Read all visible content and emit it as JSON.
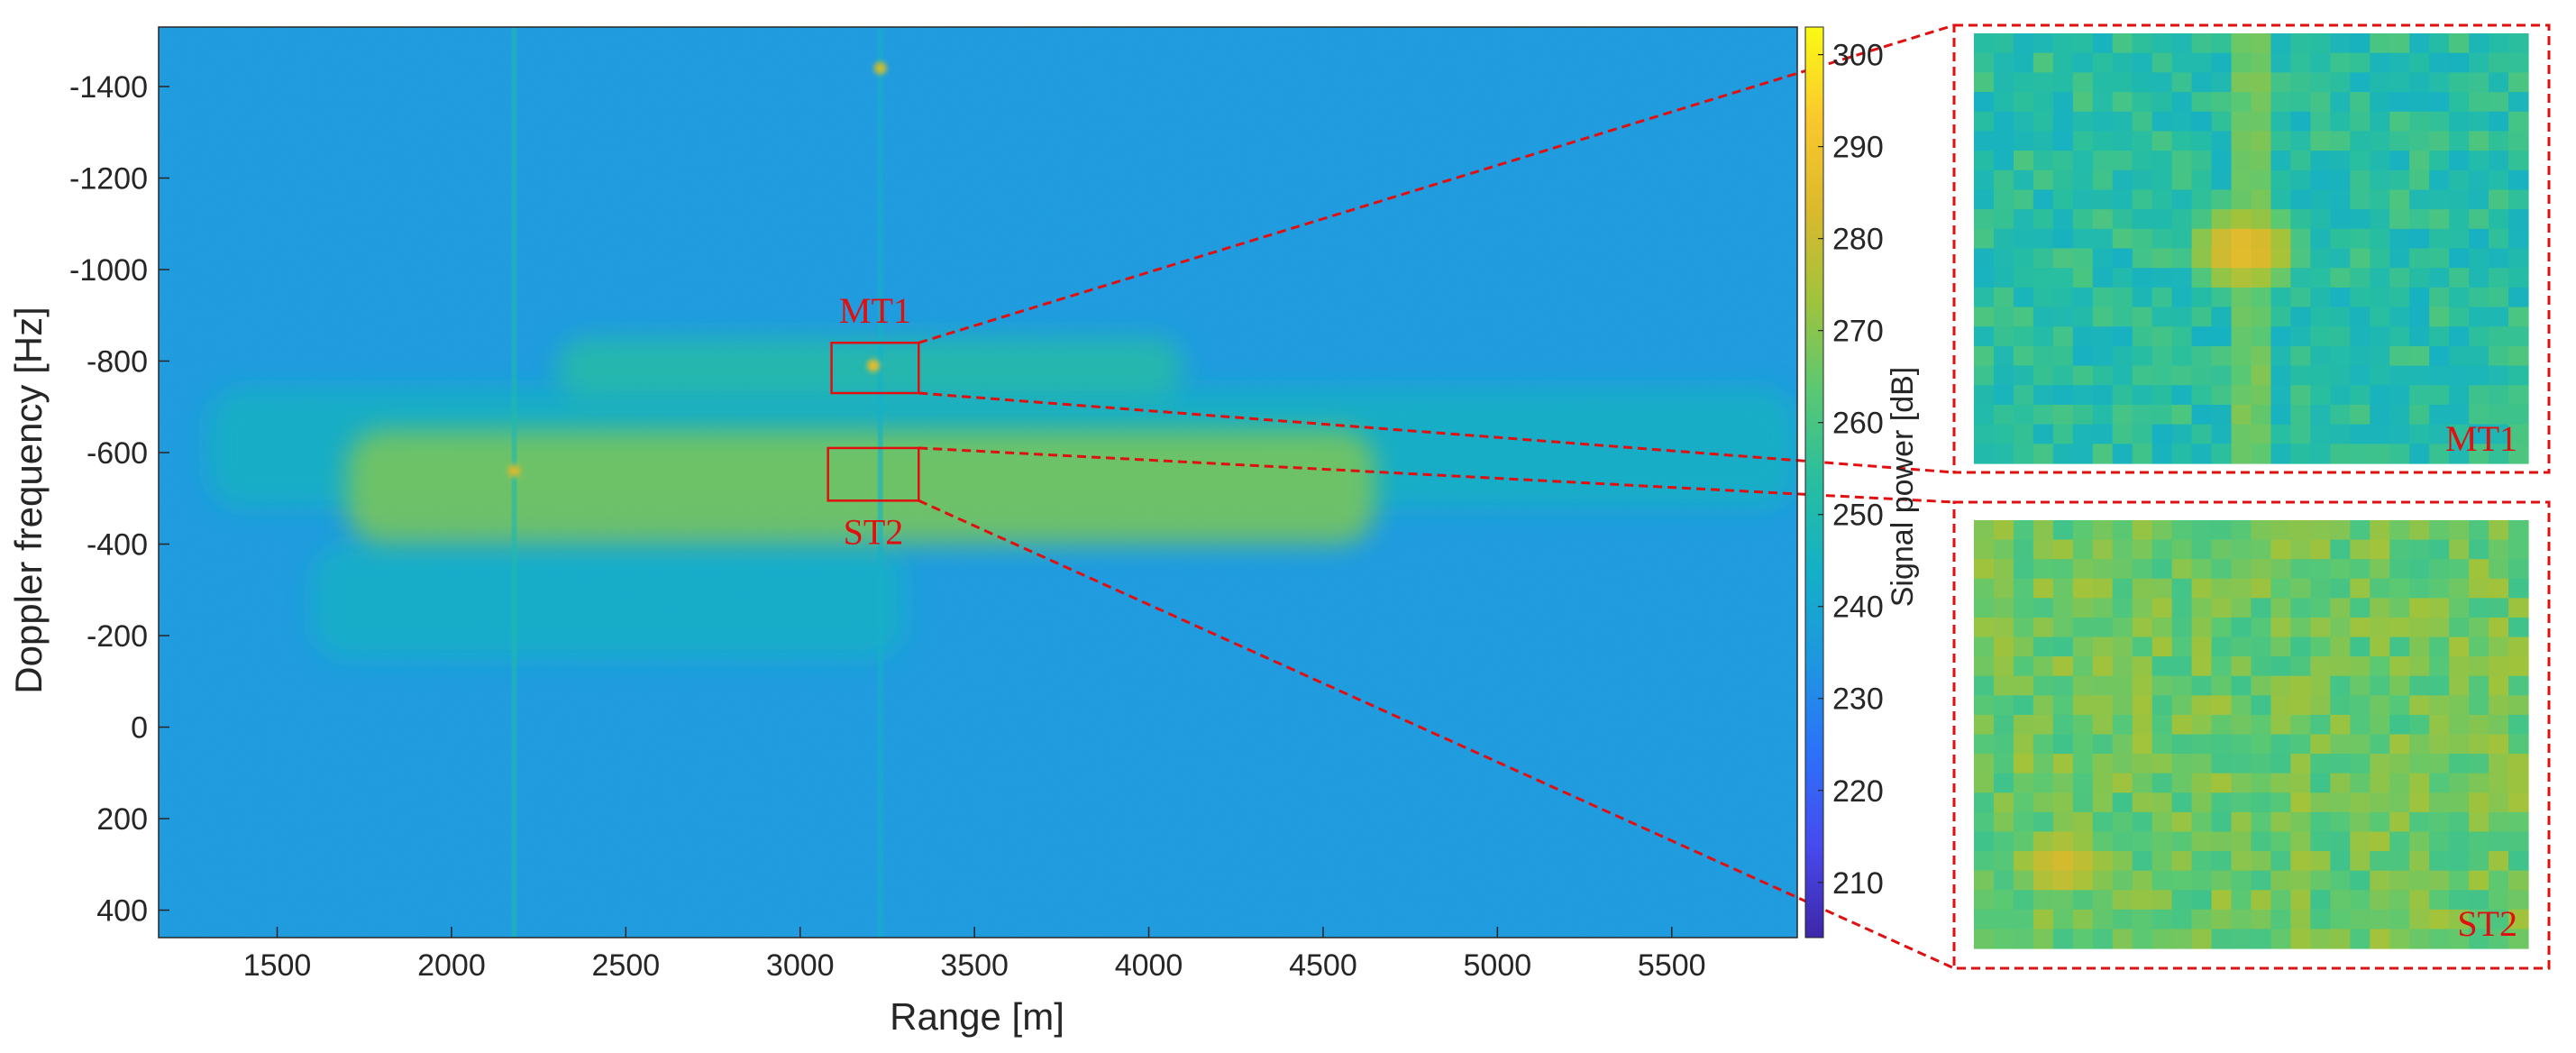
{
  "chart_data": {
    "type": "heatmap",
    "title": "",
    "xlabel": "Range [m]",
    "ylabel": "Doppler frequency [Hz]",
    "xlim": [
      1160,
      5860
    ],
    "ylim": [
      -1530,
      460
    ],
    "y_reversed": true,
    "x_ticks": [
      1500,
      2000,
      2500,
      3000,
      3500,
      4000,
      4500,
      5000,
      5500
    ],
    "y_ticks": [
      -1400,
      -1200,
      -1000,
      -800,
      -600,
      -400,
      -200,
      0,
      200,
      400
    ],
    "colorbar": {
      "label": "Signal power [dB]",
      "range": [
        204,
        303
      ],
      "ticks": [
        210,
        220,
        230,
        240,
        250,
        260,
        270,
        280,
        290,
        300
      ],
      "colormap": "parula"
    },
    "background_level_db": 235,
    "features": [
      {
        "kind": "band",
        "x": [
          1700,
          4650
        ],
        "y": [
          -650,
          -400
        ],
        "level_db": 268
      },
      {
        "kind": "band",
        "x": [
          2300,
          4100
        ],
        "y": [
          -850,
          -720
        ],
        "level_db": 252
      },
      {
        "kind": "band",
        "x": [
          1300,
          5860
        ],
        "y": [
          -740,
          -480
        ],
        "level_db": 245
      },
      {
        "kind": "band",
        "x": [
          1600,
          3300
        ],
        "y": [
          -400,
          -150
        ],
        "level_db": 244
      },
      {
        "kind": "line_vertical",
        "x": 2180,
        "level_db": 250
      },
      {
        "kind": "line_vertical",
        "x": 3230,
        "level_db": 244
      },
      {
        "kind": "point",
        "x": 3210,
        "y": -790,
        "level_db": 285
      },
      {
        "kind": "point",
        "x": 3230,
        "y": -1440,
        "level_db": 280
      },
      {
        "kind": "point",
        "x": 2180,
        "y": -560,
        "level_db": 282
      }
    ],
    "regions": [
      {
        "name": "MT1",
        "x": [
          3090,
          3340
        ],
        "y": [
          -840,
          -730
        ],
        "label_pos": "above"
      },
      {
        "name": "ST2",
        "x": [
          3080,
          3340
        ],
        "y": [
          -610,
          -495
        ],
        "label_pos": "below"
      }
    ],
    "zooms": [
      {
        "name": "MT1",
        "region": "MT1",
        "grid": [
          22,
          28
        ],
        "background_db": 253,
        "peak": {
          "col": 0.47,
          "row": 0.48,
          "level_db": 286
        },
        "cross_db": 266
      },
      {
        "name": "ST2",
        "region": "ST2",
        "grid": [
          22,
          28
        ],
        "background_db": 266,
        "peak": {
          "col": 0.14,
          "row": 0.78,
          "level_db": 282
        },
        "cross_db": 0
      }
    ],
    "grid": false,
    "legend": "none"
  }
}
